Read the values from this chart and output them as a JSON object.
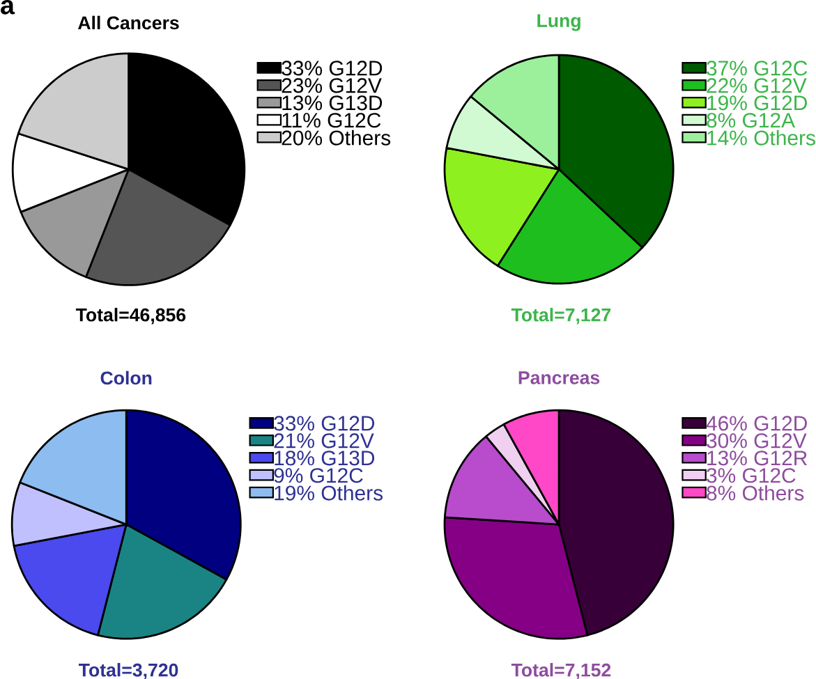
{
  "chart_data": [
    {
      "type": "pie",
      "title": "All Cancers",
      "color": "#000000",
      "legend": "right",
      "annotations": [
        "a",
        "Total=46,856"
      ],
      "categories": [
        "33% G12D",
        "23% G12V",
        "13% G13D",
        "11% G12C",
        "20% Others"
      ],
      "values": [
        33,
        23,
        13,
        11,
        20
      ],
      "colors": [
        "#000000",
        "#555555",
        "#999999",
        "#ffffff",
        "#cccccc"
      ]
    },
    {
      "type": "pie",
      "title": "Lung",
      "color": "#3cb54a",
      "legend": "right",
      "annotations": [
        "Total=7,127"
      ],
      "categories": [
        "37% G12C",
        "22% G12V",
        "19% G12D",
        "8% G12A",
        "14% Others"
      ],
      "values": [
        37,
        22,
        19,
        8,
        14
      ],
      "colors": [
        "#005a00",
        "#1ebe1e",
        "#8ef01e",
        "#d2fad2",
        "#9cf09c"
      ]
    },
    {
      "type": "pie",
      "title": "Colon",
      "color": "#2e3192",
      "legend": "right",
      "annotations": [
        "Total=3,720"
      ],
      "categories": [
        "33% G12D",
        "21% G12V",
        "18% G13D",
        "9% G12C",
        "19% Others"
      ],
      "values": [
        33,
        21,
        18,
        9,
        19
      ],
      "colors": [
        "#000080",
        "#1a8484",
        "#4a4aee",
        "#c0c0ff",
        "#8cbcf0"
      ]
    },
    {
      "type": "pie",
      "title": "Pancreas",
      "color": "#8e4c9e",
      "legend": "right",
      "annotations": [
        "Total=7,152"
      ],
      "categories": [
        "46% G12D",
        "30% G12V",
        "13% G12R",
        "3% G12C",
        "8% Others"
      ],
      "values": [
        46,
        30,
        13,
        3,
        8
      ],
      "colors": [
        "#380038",
        "#860086",
        "#b84ccc",
        "#f0d0f0",
        "#ff48c8"
      ]
    }
  ]
}
